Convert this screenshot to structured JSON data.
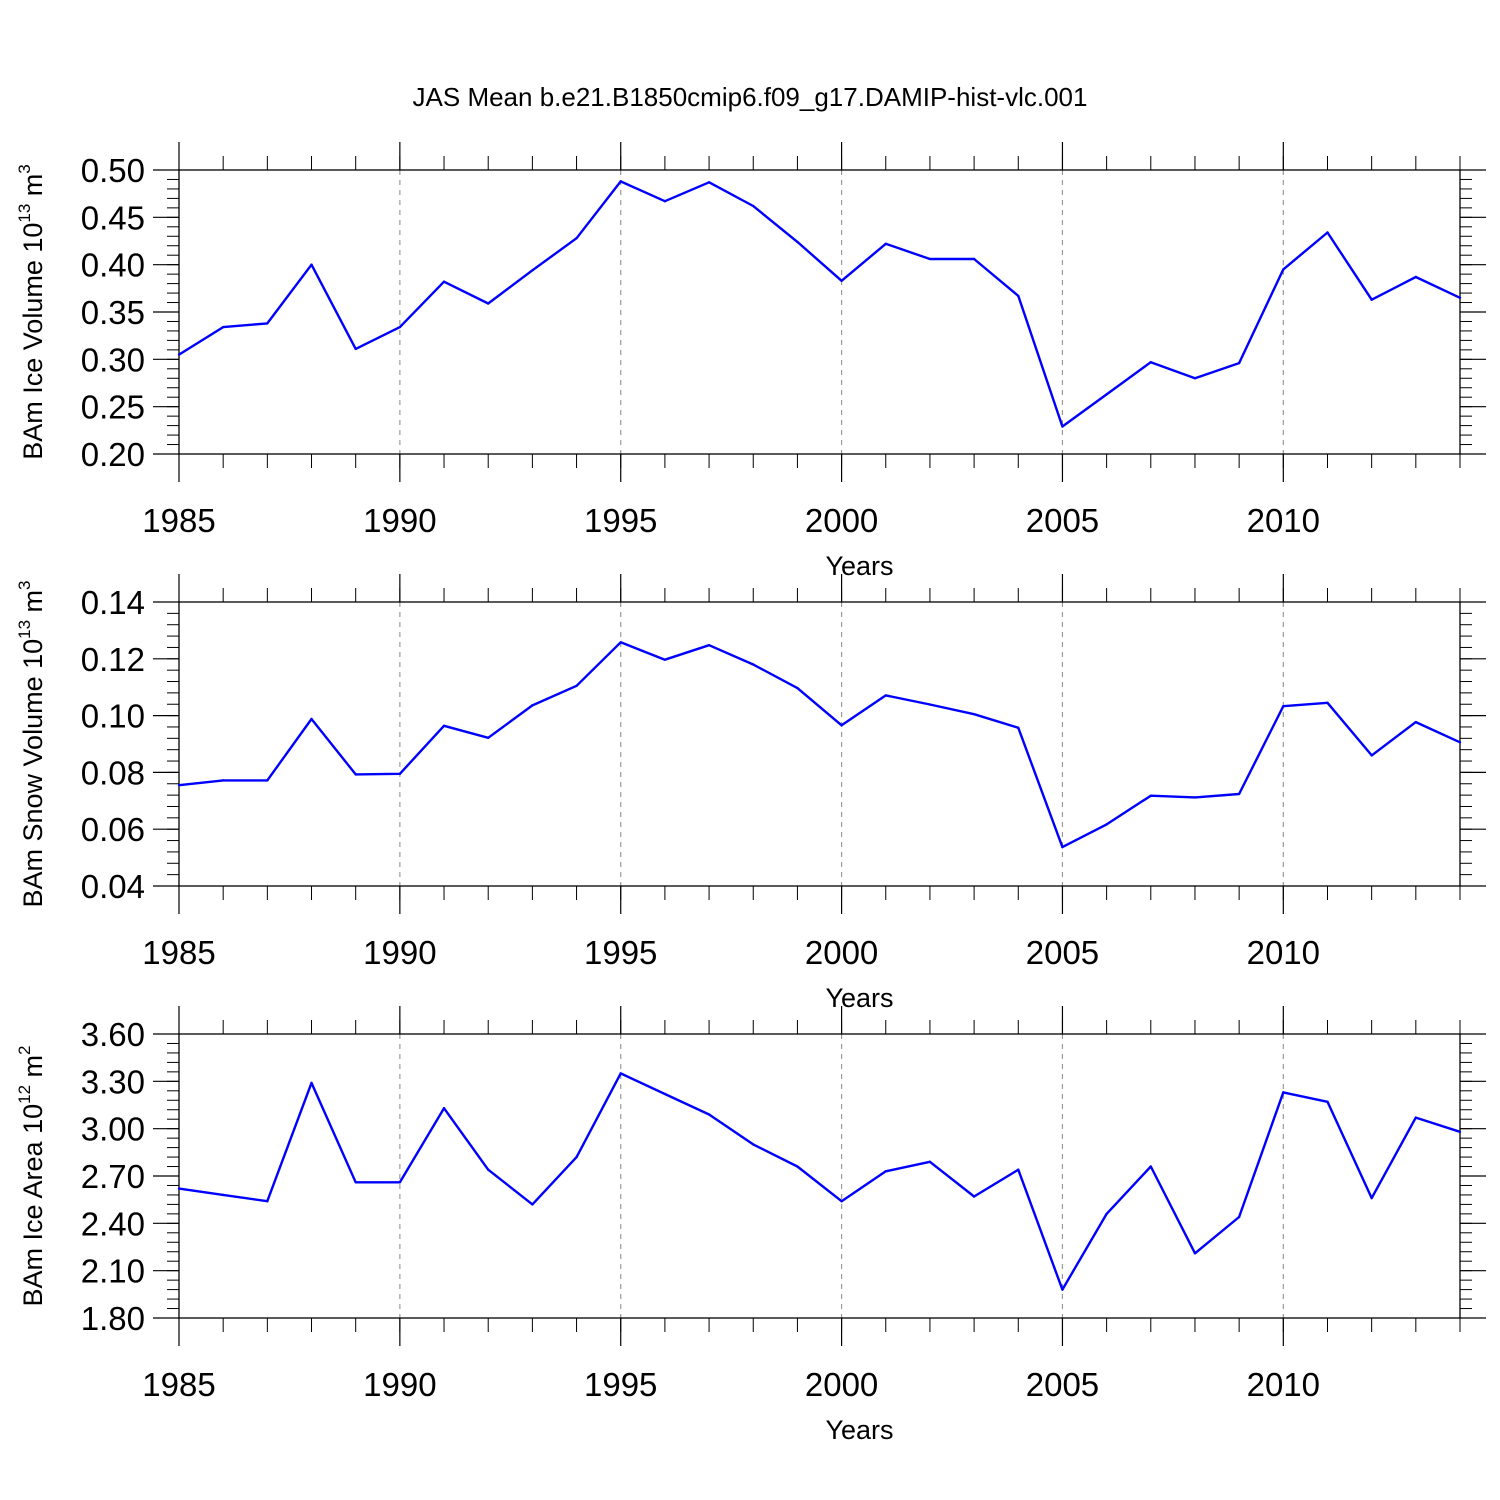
{
  "figure": {
    "title": "JAS Mean b.e21.B1850cmip6.f09_g17.DAMIP-hist-vlc.001"
  },
  "colors": {
    "series": "#0000ff",
    "axes": "#000000",
    "grid": "#999999"
  },
  "chart_data": [
    {
      "type": "line",
      "ylabel": {
        "text": "BAm Ice Volume 10",
        "exponent": "13",
        "unit": "m",
        "unit_exponent": "3"
      },
      "xlabel": "Years",
      "xlim": [
        1985,
        2014
      ],
      "ylim": [
        0.2,
        0.5
      ],
      "x_ticks": [
        1985,
        1990,
        1995,
        2000,
        2005,
        2010
      ],
      "y_ticks": [
        "0.20",
        "0.25",
        "0.30",
        "0.35",
        "0.40",
        "0.45",
        "0.50"
      ],
      "y_minor_step": 0.01,
      "grid": "vertical dashed at major x ticks",
      "x": [
        1985,
        1986,
        1987,
        1988,
        1989,
        1990,
        1991,
        1992,
        1993,
        1994,
        1995,
        1996,
        1997,
        1998,
        1999,
        2000,
        2001,
        2002,
        2003,
        2004,
        2005,
        2006,
        2007,
        2008,
        2009,
        2010,
        2011,
        2012,
        2013,
        2014
      ],
      "values": [
        0.305,
        0.334,
        0.338,
        0.4,
        0.311,
        0.334,
        0.382,
        0.359,
        0.394,
        0.428,
        0.488,
        0.467,
        0.487,
        0.462,
        0.424,
        0.383,
        0.422,
        0.406,
        0.406,
        0.367,
        0.229,
        0.263,
        0.297,
        0.28,
        0.296,
        0.395,
        0.434,
        0.363,
        0.387,
        0.365
      ]
    },
    {
      "type": "line",
      "ylabel": {
        "text": "BAm Snow Volume 10",
        "exponent": "13",
        "unit": "m",
        "unit_exponent": "3"
      },
      "xlabel": "Years",
      "xlim": [
        1985,
        2014
      ],
      "ylim": [
        0.04,
        0.14
      ],
      "x_ticks": [
        1985,
        1990,
        1995,
        2000,
        2005,
        2010
      ],
      "y_ticks": [
        "0.04",
        "0.06",
        "0.08",
        "0.10",
        "0.12",
        "0.14"
      ],
      "y_minor_step": 0.004,
      "grid": "vertical dashed at major x ticks",
      "x": [
        1985,
        1986,
        1987,
        1988,
        1989,
        1990,
        1991,
        1992,
        1993,
        1994,
        1995,
        1996,
        1997,
        1998,
        1999,
        2000,
        2001,
        2002,
        2003,
        2004,
        2005,
        2006,
        2007,
        2008,
        2009,
        2010,
        2011,
        2012,
        2013,
        2014
      ],
      "values": [
        0.0755,
        0.0772,
        0.0772,
        0.0988,
        0.0793,
        0.0795,
        0.0964,
        0.0922,
        0.1036,
        0.1105,
        0.1258,
        0.1197,
        0.1248,
        0.118,
        0.1097,
        0.0966,
        0.1071,
        0.1039,
        0.1005,
        0.0957,
        0.0537,
        0.0617,
        0.0718,
        0.0712,
        0.0724,
        0.1033,
        0.1045,
        0.086,
        0.0977,
        0.0906
      ]
    },
    {
      "type": "line",
      "ylabel": {
        "text": "BAm Ice Area 10",
        "exponent": "12",
        "unit": "m",
        "unit_exponent": "2"
      },
      "xlabel": "Years",
      "xlim": [
        1985,
        2014
      ],
      "ylim": [
        1.8,
        3.6
      ],
      "x_ticks": [
        1985,
        1990,
        1995,
        2000,
        2005,
        2010
      ],
      "y_ticks": [
        "1.80",
        "2.10",
        "2.40",
        "2.70",
        "3.00",
        "3.30",
        "3.60"
      ],
      "y_minor_step": 0.06,
      "grid": "vertical dashed at major x ticks",
      "x": [
        1985,
        1986,
        1987,
        1988,
        1989,
        1990,
        1991,
        1992,
        1993,
        1994,
        1995,
        1996,
        1997,
        1998,
        1999,
        2000,
        2001,
        2002,
        2003,
        2004,
        2005,
        2006,
        2007,
        2008,
        2009,
        2010,
        2011,
        2012,
        2013,
        2014
      ],
      "values": [
        2.62,
        2.58,
        2.54,
        3.29,
        2.66,
        2.66,
        3.13,
        2.74,
        2.52,
        2.82,
        3.35,
        3.22,
        3.09,
        2.9,
        2.76,
        2.54,
        2.73,
        2.79,
        2.57,
        2.74,
        1.98,
        2.46,
        2.76,
        2.21,
        2.44,
        3.23,
        3.17,
        2.56,
        3.07,
        2.98
      ]
    }
  ]
}
